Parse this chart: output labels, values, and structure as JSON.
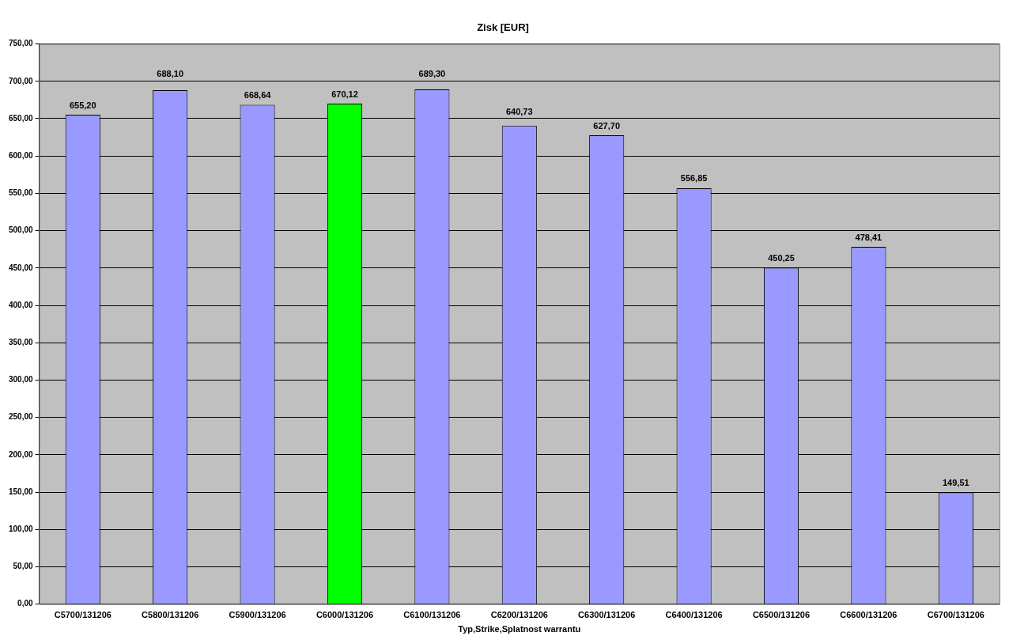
{
  "chart_data": {
    "type": "bar",
    "title": "Zisk [EUR]",
    "xlabel": "Typ,Strike,Splatnost warrantu",
    "categories": [
      "C5700/131206",
      "C5800/131206",
      "C5900/131206",
      "C6000/131206",
      "C6100/131206",
      "C6200/131206",
      "C6300/131206",
      "C6400/131206",
      "C6500/131206",
      "C6600/131206",
      "C6700/131206"
    ],
    "values": [
      655.2,
      688.1,
      668.64,
      670.12,
      689.3,
      640.73,
      627.7,
      556.85,
      450.25,
      478.41,
      149.51
    ],
    "colors": [
      "#9999ff",
      "#9999ff",
      "#9999ff",
      "#00ff00",
      "#9999ff",
      "#9999ff",
      "#9999ff",
      "#9999ff",
      "#9999ff",
      "#9999ff",
      "#9999ff"
    ],
    "value_labels": [
      "655,20",
      "688,10",
      "668,64",
      "670,12",
      "689,30",
      "640,73",
      "627,70",
      "556,85",
      "450,25",
      "478,41",
      "149,51"
    ],
    "ylim": [
      0,
      750
    ],
    "yticks": [
      {
        "value": 0,
        "label": "0,00"
      },
      {
        "value": 50,
        "label": "50,00"
      },
      {
        "value": 100,
        "label": "100,00"
      },
      {
        "value": 150,
        "label": "150,00"
      },
      {
        "value": 200,
        "label": "200,00"
      },
      {
        "value": 250,
        "label": "250,00"
      },
      {
        "value": 300,
        "label": "300,00"
      },
      {
        "value": 350,
        "label": "350,00"
      },
      {
        "value": 400,
        "label": "400,00"
      },
      {
        "value": 450,
        "label": "450,00"
      },
      {
        "value": 500,
        "label": "500,00"
      },
      {
        "value": 550,
        "label": "550,00"
      },
      {
        "value": 600,
        "label": "600,00"
      },
      {
        "value": 650,
        "label": "650,00"
      },
      {
        "value": 700,
        "label": "700,00"
      },
      {
        "value": 750,
        "label": "750,00"
      }
    ],
    "grid": "y",
    "legend": false
  }
}
